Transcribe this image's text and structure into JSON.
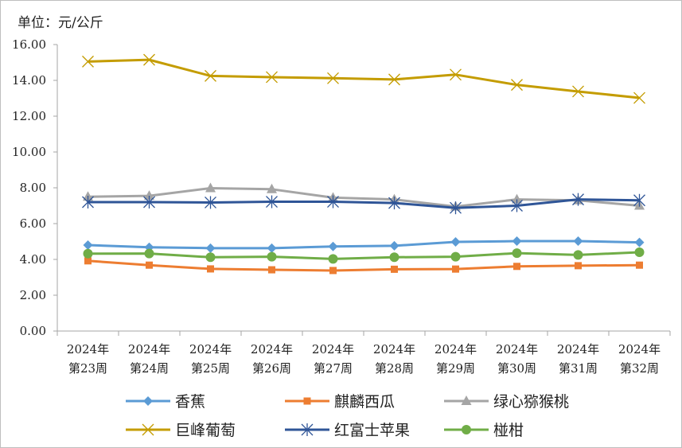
{
  "unit_label": "单位：元/公斤",
  "chart_data": {
    "type": "line",
    "title": "",
    "xlabel": "",
    "ylabel": "单位：元/公斤",
    "ylim": [
      0,
      16
    ],
    "yticks": [
      "0.00",
      "2.00",
      "4.00",
      "6.00",
      "8.00",
      "10.00",
      "12.00",
      "14.00",
      "16.00"
    ],
    "categories": [
      [
        "2024年",
        "第23周"
      ],
      [
        "2024年",
        "第24周"
      ],
      [
        "2024年",
        "第25周"
      ],
      [
        "2024年",
        "第26周"
      ],
      [
        "2024年",
        "第27周"
      ],
      [
        "2024年",
        "第28周"
      ],
      [
        "2024年",
        "第29周"
      ],
      [
        "2024年",
        "第30周"
      ],
      [
        "2024年",
        "第31周"
      ],
      [
        "2024年",
        "第32周"
      ]
    ],
    "grid": false,
    "legend_position": "bottom",
    "series": [
      {
        "name": "香蕉",
        "color": "#5b9bd5",
        "marker": "diamond",
        "values": [
          4.8,
          4.68,
          4.63,
          4.63,
          4.72,
          4.76,
          4.98,
          5.02,
          5.02,
          4.95
        ]
      },
      {
        "name": "麒麟西瓜",
        "color": "#ed7d31",
        "marker": "square",
        "values": [
          3.92,
          3.68,
          3.47,
          3.42,
          3.38,
          3.45,
          3.46,
          3.61,
          3.65,
          3.68
        ]
      },
      {
        "name": "绿心猕猴桃",
        "color": "#a5a5a5",
        "marker": "triangle",
        "values": [
          7.5,
          7.55,
          7.98,
          7.92,
          7.45,
          7.35,
          6.95,
          7.35,
          7.3,
          7.0
        ]
      },
      {
        "name": "巨峰葡萄",
        "color": "#c49c00",
        "marker": "x",
        "values": [
          15.05,
          15.15,
          14.25,
          14.18,
          14.12,
          14.05,
          14.32,
          13.75,
          13.38,
          13.02
        ]
      },
      {
        "name": "红富士苹果",
        "color": "#2f5597",
        "marker": "star",
        "values": [
          7.2,
          7.2,
          7.18,
          7.22,
          7.22,
          7.15,
          6.88,
          7.0,
          7.35,
          7.3
        ]
      },
      {
        "name": "椪柑",
        "color": "#70ad47",
        "marker": "circle",
        "values": [
          4.32,
          4.33,
          4.12,
          4.15,
          4.03,
          4.12,
          4.15,
          4.35,
          4.25,
          4.4
        ]
      }
    ]
  }
}
